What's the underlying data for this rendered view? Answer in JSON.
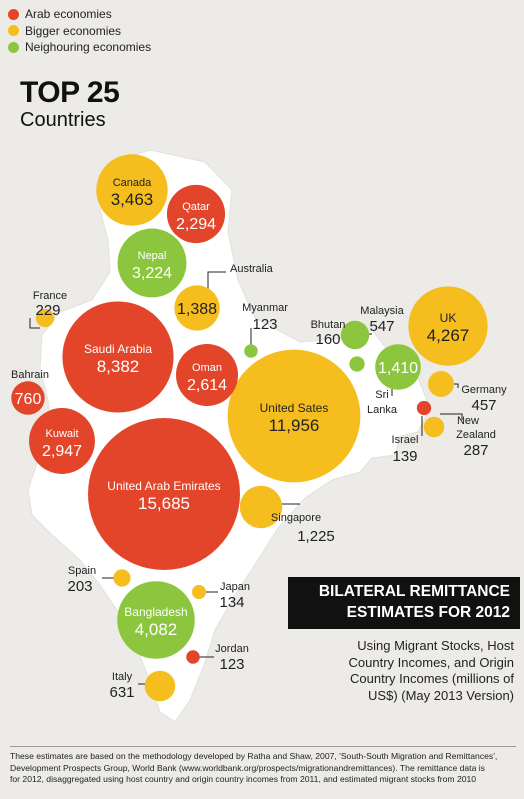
{
  "legend": [
    {
      "label": "Arab economies",
      "color": "#e2452a"
    },
    {
      "label": "Bigger economies",
      "color": "#f5be1e"
    },
    {
      "label": "Neighouring economies",
      "color": "#8cc63f"
    }
  ],
  "title": {
    "main": "TOP 25",
    "sub": "Countries"
  },
  "box": {
    "title_line1": "BILATERAL REMITTANCE",
    "title_line2": "ESTIMATES FOR 2012",
    "desc_lines": [
      "Using Migrant Stocks, Host",
      "Country Incomes, and Origin",
      "Country Incomes (millions of",
      "US$) (May 2013 Version)"
    ]
  },
  "footnote_lines": [
    "These estimates are based on the methodology developed by Ratha and Shaw, 2007, 'South-South Migration and Remittances',",
    "Development Prospects Group, World Bank (www.worldbank.org/prospects/migrationandremittances).  The remittance data is",
    "for 2012, disaggregated using host country and origin country incomes from 2011, and estimated migrant stocks from 2010"
  ],
  "colors": {
    "arab": "#e2452a",
    "bigger": "#f5be1e",
    "neighbour": "#8cc63f",
    "map": "#ffffff"
  },
  "chart_data": {
    "type": "bubble",
    "unit": "millions of US$",
    "points": [
      {
        "country": "United Arab Emirates",
        "value": 15685,
        "group": "arab"
      },
      {
        "country": "United Sates",
        "value": 11956,
        "group": "bigger"
      },
      {
        "country": "Saudi Arabia",
        "value": 8382,
        "group": "arab"
      },
      {
        "country": "UK",
        "value": 4267,
        "group": "bigger"
      },
      {
        "country": "Bangladesh",
        "value": 4082,
        "group": "neighbour"
      },
      {
        "country": "Canada",
        "value": 3463,
        "group": "bigger"
      },
      {
        "country": "Nepal",
        "value": 3224,
        "group": "neighbour"
      },
      {
        "country": "Kuwait",
        "value": 2947,
        "group": "arab"
      },
      {
        "country": "Oman",
        "value": 2614,
        "group": "arab"
      },
      {
        "country": "Qatar",
        "value": 2294,
        "group": "arab"
      },
      {
        "country": "Sri Lanka",
        "value": 1410,
        "group": "neighbour"
      },
      {
        "country": "Australia",
        "value": 1388,
        "group": "bigger"
      },
      {
        "country": "Singapore",
        "value": 1225,
        "group": "bigger"
      },
      {
        "country": "Bahrain",
        "value": 760,
        "group": "arab"
      },
      {
        "country": "Italy",
        "value": 631,
        "group": "bigger"
      },
      {
        "country": "Malaysia",
        "value": 547,
        "group": "neighbour"
      },
      {
        "country": "Germany",
        "value": 457,
        "group": "bigger"
      },
      {
        "country": "New Zealand",
        "value": 287,
        "group": "bigger"
      },
      {
        "country": "France",
        "value": 229,
        "group": "bigger"
      },
      {
        "country": "Spain",
        "value": 203,
        "group": "bigger"
      },
      {
        "country": "Bhutan",
        "value": 160,
        "group": "neighbour"
      },
      {
        "country": "Israel",
        "value": 139,
        "group": "arab"
      },
      {
        "country": "Japan",
        "value": 134,
        "group": "bigger"
      },
      {
        "country": "Myanmar",
        "value": 123,
        "group": "neighbour"
      },
      {
        "country": "Jordan",
        "value": 123,
        "group": "arab"
      }
    ]
  }
}
